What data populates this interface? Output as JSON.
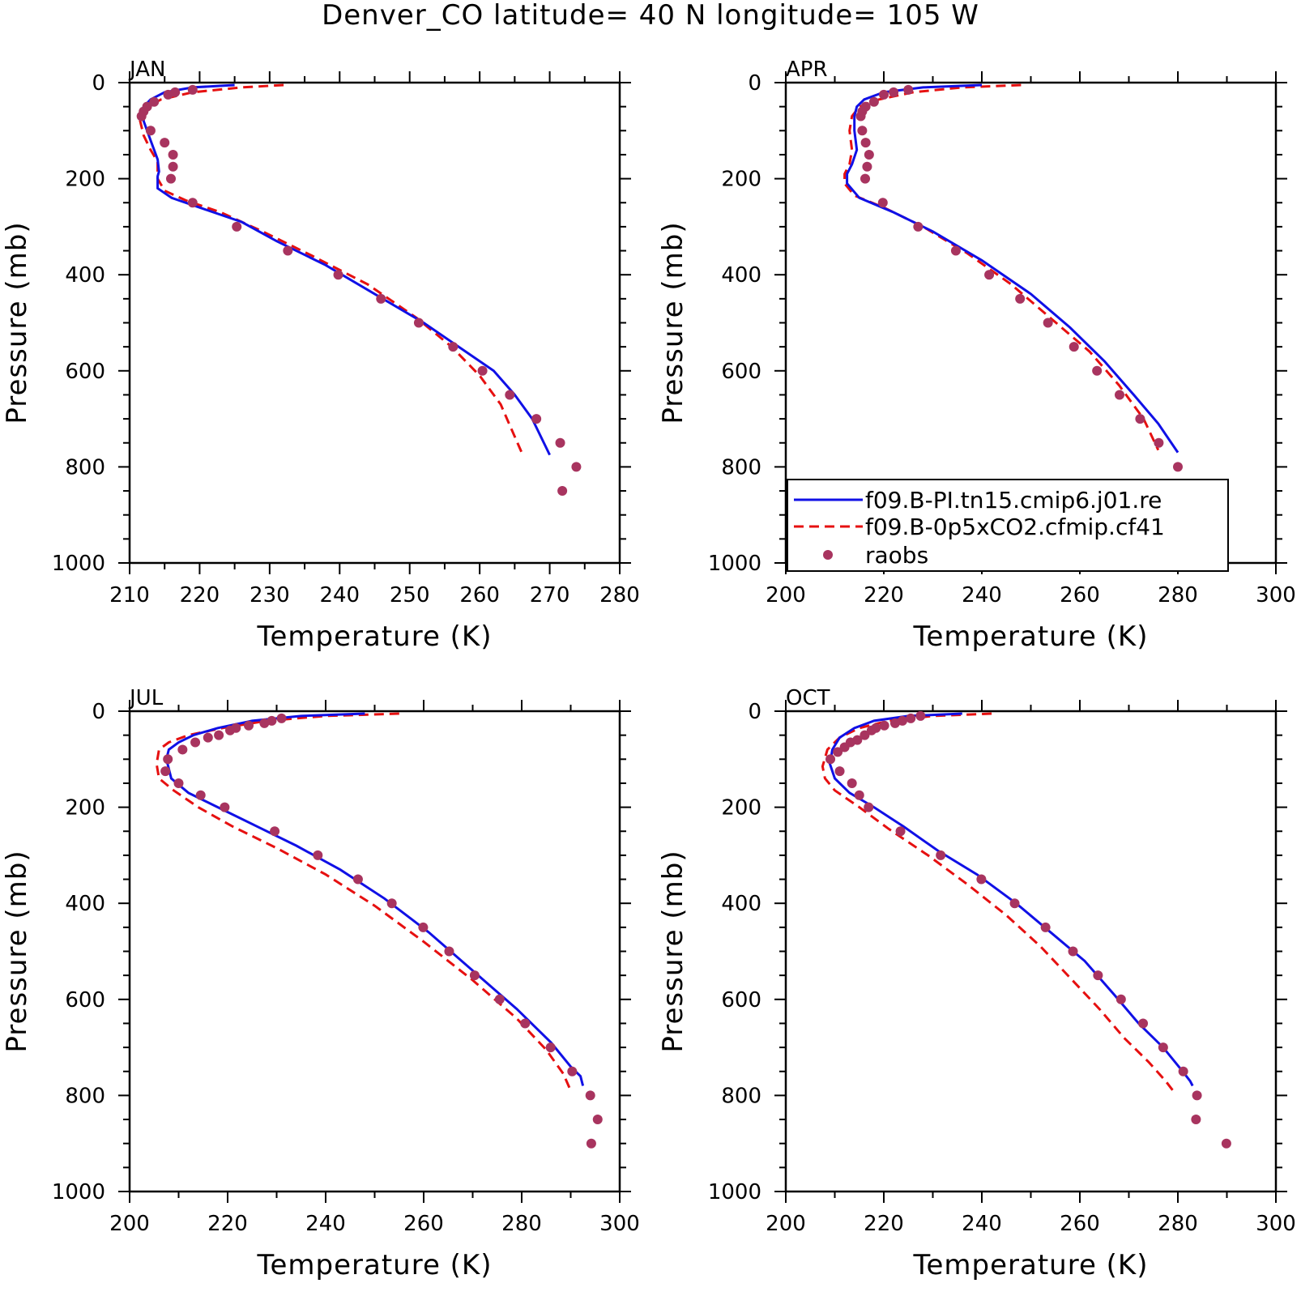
{
  "title": "Denver_CO  latitude= 40 N longitude= 105 W",
  "colors": {
    "model_a": "#1010e6",
    "model_b": "#e61010",
    "obs": "#a8345f"
  },
  "legend": {
    "entries": [
      {
        "label": "f09.B-PI.tn15.cmip6.j01.re",
        "style": "solid"
      },
      {
        "label": "f09.B-0p5xCO2.cfmip.cf41",
        "style": "dashed"
      },
      {
        "label": "raobs",
        "style": "marker"
      }
    ]
  },
  "chart_data": [
    {
      "type": "line",
      "panel_label": "JAN",
      "xlabel": "Temperature (K)",
      "ylabel": "Pressure (mb)",
      "xlim": [
        210,
        280
      ],
      "ylim": [
        1000,
        0
      ],
      "y_inverted": true,
      "xticks": [
        210,
        220,
        230,
        240,
        250,
        260,
        270,
        280
      ],
      "yticks": [
        0,
        200,
        400,
        600,
        800,
        1000
      ],
      "series": [
        {
          "name": "f09.B-PI.tn15.cmip6.j01.re",
          "x": [
            225,
            219,
            215,
            213,
            212,
            212,
            213,
            214,
            214.2,
            214,
            214,
            216,
            220,
            226,
            231,
            238,
            245,
            252,
            258,
            262,
            265,
            267.5,
            270
          ],
          "y": [
            5,
            10,
            20,
            35,
            50,
            80,
            120,
            160,
            185,
            195,
            220,
            240,
            260,
            290,
            330,
            380,
            440,
            500,
            560,
            600,
            650,
            700,
            775
          ]
        },
        {
          "name": "f09.B-0p5xCO2.cfmip.cf41",
          "x": [
            232,
            226,
            219,
            214.5,
            212.5,
            211.5,
            212,
            213,
            214,
            214,
            215,
            218,
            223,
            229,
            236,
            244,
            251,
            256,
            260,
            263,
            264.5,
            266
          ],
          "y": [
            5,
            10,
            20,
            35,
            50,
            80,
            110,
            140,
            165,
            200,
            225,
            245,
            270,
            310,
            360,
            420,
            490,
            550,
            610,
            670,
            720,
            770
          ]
        },
        {
          "name": "raobs",
          "x": [
            219,
            216.5,
            215.5,
            213.5,
            212.5,
            212,
            211.7,
            213,
            215,
            216.2,
            216.2,
            215.9,
            219,
            225.3,
            232.6,
            239.8,
            245.9,
            251.3,
            256.2,
            260.4,
            264.3,
            268.1,
            271.5,
            273.8,
            271.8
          ],
          "y": [
            15,
            20,
            25,
            40,
            50,
            60,
            70,
            100,
            125,
            150,
            175,
            200,
            250,
            300,
            350,
            400,
            450,
            500,
            550,
            600,
            650,
            700,
            750,
            800,
            850
          ]
        }
      ]
    },
    {
      "type": "line",
      "panel_label": "APR",
      "xlabel": "Temperature (K)",
      "ylabel": "Pressure (mb)",
      "xlim": [
        200,
        300
      ],
      "ylim": [
        1000,
        0
      ],
      "y_inverted": true,
      "xticks": [
        200,
        220,
        240,
        260,
        280,
        300
      ],
      "yticks": [
        0,
        200,
        400,
        600,
        800,
        1000
      ],
      "series": [
        {
          "name": "f09.B-PI.tn15.cmip6.j01.re",
          "x": [
            240,
            228,
            220,
            216,
            214.5,
            214,
            214,
            214.5,
            213.5,
            212.5,
            212.5,
            215,
            222,
            230,
            240,
            250,
            258,
            265,
            271,
            276,
            280
          ],
          "y": [
            5,
            10,
            20,
            35,
            50,
            70,
            100,
            140,
            170,
            190,
            210,
            240,
            270,
            310,
            370,
            440,
            510,
            580,
            650,
            710,
            770
          ]
        },
        {
          "name": "f09.B-0p5xCO2.cfmip.cf41",
          "x": [
            248,
            236,
            226,
            219,
            215,
            213.5,
            213,
            213.5,
            213,
            212,
            212,
            214,
            220,
            228,
            237,
            246,
            254,
            262,
            268,
            273,
            276
          ],
          "y": [
            5,
            10,
            20,
            35,
            50,
            70,
            100,
            140,
            170,
            190,
            210,
            235,
            260,
            300,
            355,
            420,
            490,
            560,
            630,
            700,
            765
          ]
        },
        {
          "name": "raobs",
          "x": [
            225,
            222,
            220,
            218,
            216.3,
            215.6,
            215.3,
            215.6,
            216.3,
            217,
            216.6,
            216.2,
            219.8,
            227,
            234.7,
            241.5,
            247.8,
            253.5,
            258.8,
            263.5,
            268.1,
            272.3,
            276.1,
            280,
            281.2
          ],
          "y": [
            15,
            20,
            25,
            40,
            50,
            60,
            70,
            100,
            125,
            150,
            175,
            200,
            250,
            300,
            350,
            400,
            450,
            500,
            550,
            600,
            650,
            700,
            750,
            800,
            850
          ]
        }
      ]
    },
    {
      "type": "line",
      "panel_label": "JUL",
      "xlabel": "Temperature (K)",
      "ylabel": "Pressure (mb)",
      "xlim": [
        200,
        300
      ],
      "ylim": [
        1000,
        0
      ],
      "y_inverted": true,
      "xticks": [
        200,
        220,
        240,
        260,
        280,
        300
      ],
      "yticks": [
        0,
        200,
        400,
        600,
        800,
        1000
      ],
      "series": [
        {
          "name": "f09.B-PI.tn15.cmip6.j01.re",
          "x": [
            248,
            235,
            225,
            218,
            213,
            210,
            208,
            207.5,
            208.5,
            212,
            218,
            226,
            234,
            243,
            252,
            261,
            270,
            279,
            286,
            290,
            292,
            292.5
          ],
          "y": [
            5,
            10,
            20,
            35,
            50,
            65,
            80,
            100,
            140,
            170,
            200,
            240,
            280,
            330,
            390,
            460,
            540,
            620,
            690,
            740,
            760,
            780
          ]
        },
        {
          "name": "f09.B-0p5xCO2.cfmip.cf41",
          "x": [
            255,
            240,
            228,
            219,
            212,
            208,
            206,
            205.5,
            206,
            209,
            214,
            221,
            230,
            240,
            250,
            260,
            270,
            279,
            285,
            288.5,
            290
          ],
          "y": [
            5,
            10,
            20,
            35,
            50,
            65,
            80,
            110,
            140,
            165,
            200,
            240,
            285,
            340,
            405,
            480,
            560,
            640,
            705,
            755,
            790
          ]
        },
        {
          "name": "raobs",
          "x": [
            231,
            229,
            227.5,
            224.3,
            221.7,
            220.5,
            218.2,
            216,
            213.4,
            210.8,
            207.8,
            207.3,
            210,
            214.5,
            219.4,
            229.6,
            238.4,
            246.6,
            253.5,
            259.9,
            265.2,
            270.4,
            275.5,
            280.7,
            285.9,
            290.3,
            294,
            295.5,
            294.2
          ],
          "y": [
            15,
            20,
            25,
            30,
            35,
            40,
            50,
            55,
            65,
            80,
            100,
            125,
            150,
            175,
            200,
            250,
            300,
            350,
            400,
            450,
            500,
            550,
            600,
            650,
            700,
            750,
            800,
            850,
            900
          ]
        }
      ]
    },
    {
      "type": "line",
      "panel_label": "OCT",
      "xlabel": "Temperature (K)",
      "ylabel": "Pressure (mb)",
      "xlim": [
        200,
        300
      ],
      "ylim": [
        1000,
        0
      ],
      "y_inverted": true,
      "xticks": [
        200,
        220,
        240,
        260,
        280,
        300
      ],
      "yticks": [
        0,
        200,
        400,
        600,
        800,
        1000
      ],
      "series": [
        {
          "name": "f09.B-PI.tn15.cmip6.j01.re",
          "x": [
            236,
            225,
            218,
            214,
            211,
            209.5,
            209,
            210,
            213,
            218,
            224,
            231,
            239,
            247,
            254,
            261,
            267,
            272,
            277,
            281,
            282.5,
            283
          ],
          "y": [
            5,
            10,
            20,
            35,
            55,
            80,
            110,
            140,
            170,
            200,
            240,
            290,
            340,
            400,
            460,
            520,
            590,
            650,
            700,
            750,
            770,
            780
          ]
        },
        {
          "name": "f09.B-0p5xCO2.cfmip.cf41",
          "x": [
            242,
            230,
            221,
            215,
            211,
            208.5,
            207.5,
            208,
            210,
            215,
            221,
            229,
            237,
            245,
            252,
            258,
            264,
            269,
            274,
            277.5,
            279
          ],
          "y": [
            5,
            10,
            20,
            35,
            55,
            80,
            115,
            140,
            165,
            200,
            245,
            300,
            360,
            425,
            490,
            555,
            620,
            680,
            730,
            770,
            790
          ]
        },
        {
          "name": "raobs",
          "x": [
            227.5,
            225.5,
            223.8,
            222.3,
            220.1,
            218.4,
            217.5,
            216.1,
            214.6,
            213.2,
            212,
            210.6,
            209.1,
            211,
            213.5,
            215,
            216.9,
            223.4,
            231.6,
            239.9,
            246.7,
            253,
            258.6,
            263.7,
            268.4,
            272.9,
            277,
            281.1,
            283.9,
            283.7,
            289.9
          ],
          "y": [
            10,
            15,
            20,
            25,
            30,
            35,
            40,
            50,
            60,
            65,
            75,
            85,
            100,
            125,
            150,
            175,
            200,
            250,
            300,
            350,
            400,
            450,
            500,
            550,
            600,
            650,
            700,
            750,
            800,
            850,
            900
          ]
        }
      ]
    }
  ]
}
